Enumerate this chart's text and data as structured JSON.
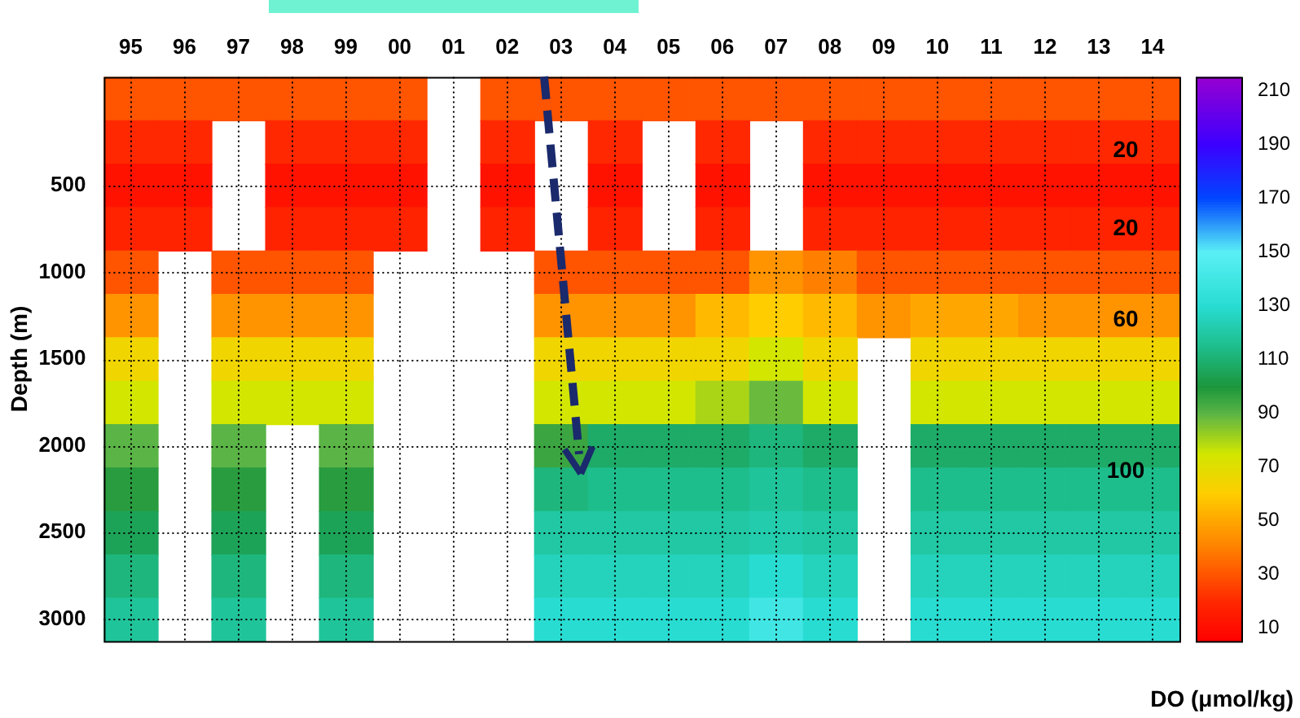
{
  "chart_data": {
    "type": "heatmap",
    "ylabel": "Depth (m)",
    "clabel": "DO (μmol/kg)",
    "categories": [
      "95",
      "96",
      "97",
      "98",
      "99",
      "00",
      "01",
      "02",
      "03",
      "04",
      "05",
      "06",
      "07",
      "08",
      "09",
      "10",
      "11",
      "12",
      "13",
      "14"
    ],
    "y_categories": [
      null,
      null,
      "500",
      null,
      "1000",
      null,
      "1500",
      null,
      "2000",
      null,
      "2500",
      null,
      "3000"
    ],
    "clim": [
      5,
      215
    ],
    "cticks": [
      10,
      30,
      50,
      70,
      90,
      110,
      130,
      150,
      170,
      190,
      210
    ],
    "grid": true,
    "annotations": [
      "20",
      "20",
      "60",
      "100"
    ],
    "cells": [
      [
        30,
        30,
        30,
        30,
        30,
        30,
        null,
        30,
        30,
        30,
        30,
        30,
        30,
        30,
        30,
        30,
        30,
        30,
        30,
        30
      ],
      [
        20,
        20,
        null,
        20,
        20,
        20,
        null,
        20,
        null,
        20,
        null,
        20,
        null,
        20,
        20,
        20,
        20,
        20,
        20,
        20
      ],
      [
        12,
        12,
        null,
        12,
        12,
        12,
        null,
        12,
        null,
        12,
        null,
        12,
        null,
        12,
        12,
        12,
        12,
        12,
        12,
        12
      ],
      [
        18,
        18,
        null,
        18,
        18,
        18,
        null,
        18,
        null,
        18,
        null,
        18,
        null,
        18,
        18,
        18,
        18,
        18,
        18,
        18
      ],
      [
        30,
        null,
        30,
        30,
        30,
        null,
        null,
        null,
        30,
        30,
        30,
        30,
        45,
        40,
        30,
        30,
        30,
        30,
        30,
        30
      ],
      [
        45,
        null,
        45,
        45,
        45,
        null,
        null,
        null,
        45,
        45,
        45,
        55,
        60,
        55,
        45,
        50,
        50,
        45,
        45,
        45
      ],
      [
        65,
        null,
        65,
        65,
        65,
        null,
        null,
        null,
        65,
        65,
        65,
        65,
        75,
        65,
        null,
        65,
        65,
        65,
        65,
        65
      ],
      [
        75,
        null,
        75,
        75,
        75,
        null,
        null,
        null,
        75,
        75,
        75,
        80,
        88,
        75,
        null,
        75,
        75,
        75,
        75,
        75
      ],
      [
        90,
        null,
        90,
        null,
        90,
        null,
        null,
        null,
        95,
        108,
        108,
        108,
        112,
        108,
        null,
        108,
        108,
        108,
        108,
        108
      ],
      [
        98,
        null,
        98,
        null,
        98,
        null,
        null,
        null,
        112,
        115,
        115,
        115,
        118,
        115,
        null,
        115,
        115,
        115,
        115,
        115
      ],
      [
        105,
        null,
        105,
        null,
        105,
        null,
        null,
        null,
        120,
        120,
        120,
        120,
        122,
        120,
        null,
        120,
        120,
        120,
        120,
        120
      ],
      [
        112,
        null,
        112,
        null,
        112,
        null,
        null,
        null,
        125,
        125,
        125,
        125,
        130,
        125,
        null,
        125,
        125,
        125,
        125,
        125
      ],
      [
        118,
        null,
        118,
        null,
        118,
        null,
        null,
        null,
        130,
        130,
        130,
        130,
        140,
        130,
        null,
        130,
        130,
        130,
        130,
        130
      ]
    ]
  }
}
